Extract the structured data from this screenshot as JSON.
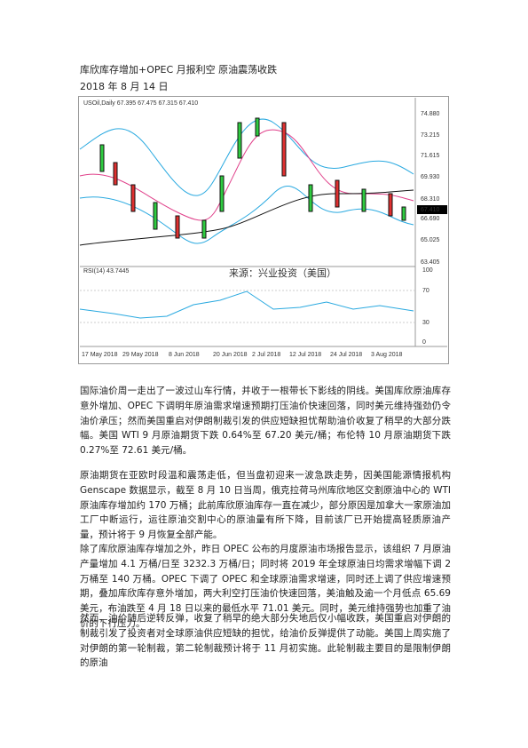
{
  "header": {
    "title": "库欣库存增加+OPEC 月报利空 原油震荡收跌",
    "date": "2018 年 8 月 14 日"
  },
  "figure": {
    "legend": "USOil,Daily  67.395 67.475 67.315 67.410",
    "watermark": "来源：兴业投资（美国）",
    "price_ticks": [
      "74.880",
      "73.215",
      "71.615",
      "69.930",
      "68.310",
      "67.410",
      "66.690",
      "65.025",
      "63.405"
    ],
    "rsi_label": "RSI(14) 43.7445",
    "rsi_ticks": [
      "100",
      "70",
      "30",
      "0"
    ],
    "dates": [
      "17 May 2018",
      "29 May 2018",
      "8 Jun 2018",
      "20 Jun 2018",
      "2 Jul 2018",
      "12 Jul 2018",
      "24 Jul 2018",
      "3 Aug 2018"
    ]
  },
  "paragraphs": [
    "国际油价周一走出了一波过山车行情，并收于一根带长下影线的阴线。美国库欣原油库存意外增加、OPEC 下调明年原油需求增速预期打压油价快速回落，同时美元维持强劲仍令油价承压；然而美国重启对伊朗制裁引发的供应短缺担忧帮助油价收复了稍早的大部分跌幅。美国 WTI 9 月原油期货下跌 0.64%至 67.20 美元/桶；布伦特 10 月原油期货下跌 0.27%至 72.61 美元/桶。",
    "原油期货在亚欧时段温和震荡走低，但当盘初迎来一波急跌走势，因美国能源情报机构 Genscape 数据显示，截至 8 月 10 日当周，俄克拉荷马州库欣地区交割原油中心的 WTI 原油库存增加约 170 万桶；此前库欣原油库存一直在减少，部分原因是加拿大一家原油加工厂中断运行，运往原油交割中心的原油量有所下降，目前该厂已开始提高轻质原油产量，预计将于 9 月恢复全部产能。",
    "除了库欣原油库存增加之外，昨日 OPEC 公布的月度原油市场报告显示，该组织 7 月原油产量增加 4.1 万桶/日至 3232.3 万桶/日；同时将 2019 年全球原油日均需求增幅下调 2 万桶至 140 万桶。OPEC 下调了 OPEC 和全球原油需求增速，同时还上调了供应增速预期，叠加库欣库存意外增加，两大利空打压油价快速回落，美油触及逾一个月低点 65.69 美元，布油跌至 4 月 18 日以来的最低水平 71.01 美元。同时，美元维持强势也加重了油价的下行压力。",
    "然而，油价随后逆转反弹，收复了稍早的绝大部分失地后仅小幅收跌，美国重启对伊朗的制裁引发了投资者对全球原油供应短缺的担忧，给油价反弹提供了动能。美国上周实施了对伊朗的第一轮制裁，第二轮制裁预计将于 11 月初实施。此轮制裁主要目的是限制伊朗的原油"
  ]
}
